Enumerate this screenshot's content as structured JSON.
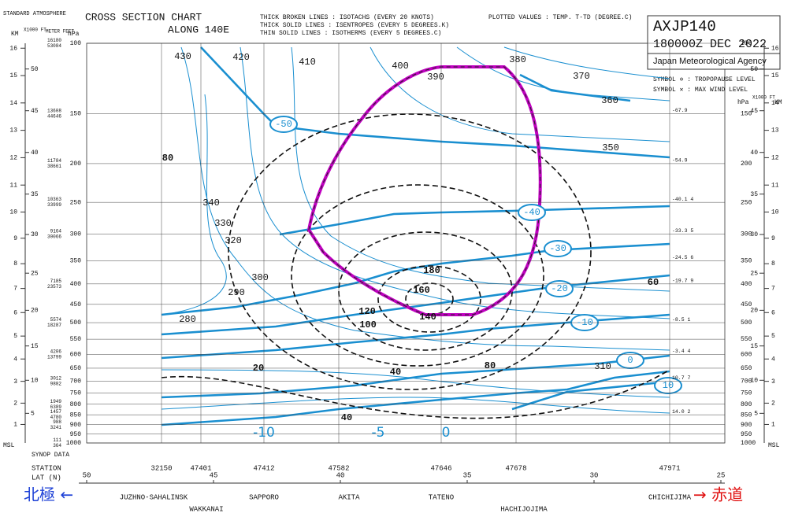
{
  "header": {
    "title": "CROSS SECTION CHART",
    "subtitle": "ALONG 140E",
    "legend_lines": [
      "THICK BROKEN LINES : ISOTACHS   (EVERY 20 KNOTS)",
      "THICK SOLID  LINES : ISENTROPES (EVERY  5 DEGREES.K)",
      "THIN  SOLID  LINES : ISOTHERMS  (EVERY  5 DEGREES.C)"
    ],
    "plotted": "PLOTTED VALUES : TEMP. T-TD (DEGREE.C)",
    "code": "AXJP140",
    "time": "180000Z DEC 2022",
    "agency": "Japan Meteorological Agency",
    "symbol_tropopause": "SYMBOL ✡ : TROPOPAUSE LEVEL",
    "symbol_max_wind": "SYMBOL ✕ : MAX WIND LEVEL"
  },
  "axes": {
    "std_atmosphere": "STANDARD ATMOSPHERE",
    "km_label": "KM",
    "ft_label": "X1000 FT",
    "meter_feet_label": "METER FEET",
    "hpa_label": "hPa",
    "msl_label": "MSL",
    "pressure_ticks": [
      100,
      150,
      200,
      250,
      300,
      350,
      400,
      450,
      500,
      550,
      600,
      650,
      700,
      750,
      800,
      850,
      900,
      950,
      1000
    ],
    "km_ticks": [
      1,
      2,
      3,
      4,
      5,
      6,
      7,
      8,
      9,
      10,
      11,
      12,
      13,
      14,
      15,
      16
    ],
    "ft_ticks": [
      5,
      10,
      15,
      20,
      25,
      30,
      35,
      40,
      45,
      50
    ],
    "meter_feet": [
      {
        "p": 100,
        "m": 16180,
        "ft": 53084
      },
      {
        "p": 150,
        "m": 13608,
        "ft": 44646
      },
      {
        "p": 200,
        "m": 11784,
        "ft": 38661
      },
      {
        "p": 250,
        "m": 10363,
        "ft": 33999
      },
      {
        "p": 300,
        "m": 9164,
        "ft": 30066
      },
      {
        "p": 400,
        "m": 7185,
        "ft": 23573
      },
      {
        "p": 500,
        "m": 5574,
        "ft": 18287
      },
      {
        "p": 600,
        "m": 4206,
        "ft": 13799
      },
      {
        "p": 700,
        "m": 3012,
        "ft": 9882
      },
      {
        "p": 800,
        "m": 1949,
        "ft": 6389
      },
      {
        "p": 850,
        "m": 1457,
        "ft": 4780
      },
      {
        "p": 900,
        "m": 988,
        "ft": 3241
      },
      {
        "p": 1000,
        "m": 111,
        "ft": 364
      }
    ]
  },
  "stations": {
    "station_label": "STATION",
    "lat_label": "LAT (N)",
    "synop_label": "SYNOP DATA",
    "ids": [
      "32150",
      "47401",
      "47412",
      "47582",
      "47646",
      "47678",
      "47971"
    ],
    "names": [
      "JUZHNO-SAHALINSK",
      "WAKKANAI",
      "SAPPORO",
      "AKITA",
      "TATENO",
      "HACHIJOJIMA",
      "CHICHIJIMA"
    ],
    "lat_ticks": [
      50,
      45,
      40,
      35,
      30,
      25
    ]
  },
  "chichijima_column": [
    {
      "p": 150,
      "text": "-67.9"
    },
    {
      "p": 200,
      "text": "-54.9"
    },
    {
      "p": 250,
      "text": "-40.1 4"
    },
    {
      "p": 300,
      "text": "-33.3 5"
    },
    {
      "p": 350,
      "text": "-24.5 6"
    },
    {
      "p": 400,
      "text": "-19.7 9"
    },
    {
      "p": 500,
      "text": "-8.5 1"
    },
    {
      "p": 600,
      "text": "-3.4 4"
    },
    {
      "p": 700,
      "text": "10.7 7"
    },
    {
      "p": 850,
      "text": "14.0 2"
    }
  ],
  "contours": {
    "isentropes": [
      430,
      420,
      410,
      400,
      390,
      380,
      370,
      360,
      350,
      340,
      330,
      320,
      310,
      300,
      290,
      280
    ],
    "isotachs": [
      180,
      160,
      140,
      120,
      100,
      80,
      80,
      60,
      40,
      40,
      20
    ],
    "isotherms": [
      -50,
      -40,
      -30,
      -20,
      -10,
      0,
      10
    ],
    "surface_isotherms": [
      -10,
      -5,
      0
    ]
  },
  "annotations": {
    "north": "北極 ←",
    "equator": "→ 赤道"
  }
}
